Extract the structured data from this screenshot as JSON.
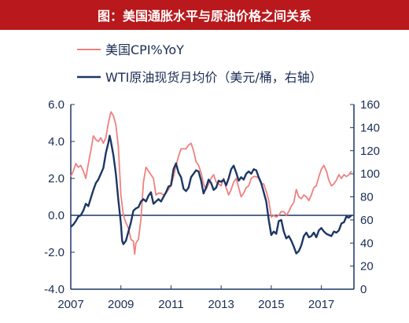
{
  "title": "图：美国通胀水平与原油价格之间关系",
  "chart_data": {
    "type": "line",
    "legend": "top-left",
    "grid": false,
    "x_ticks": [
      "2007",
      "2009",
      "2011",
      "2013",
      "2015",
      "2017"
    ],
    "x_range": [
      2007,
      2018.3
    ],
    "left_axis": {
      "ylim": [
        -4,
        6
      ],
      "ticks": [
        "6.0",
        "4.0",
        "2.0",
        "0.0",
        "-2.0",
        "-4.0"
      ]
    },
    "right_axis": {
      "ylim": [
        0,
        160
      ],
      "ticks": [
        "160",
        "140",
        "120",
        "100",
        "80",
        "60",
        "40",
        "20",
        "0"
      ]
    },
    "zero_line": 0,
    "series": [
      {
        "name": "美国CPI%YoY",
        "axis": "left",
        "color": "#f08080",
        "values": [
          [
            2007.0,
            2.1
          ],
          [
            2007.1,
            2.4
          ],
          [
            2007.2,
            2.8
          ],
          [
            2007.3,
            2.6
          ],
          [
            2007.4,
            2.7
          ],
          [
            2007.5,
            2.4
          ],
          [
            2007.6,
            2.0
          ],
          [
            2007.7,
            2.8
          ],
          [
            2007.8,
            3.5
          ],
          [
            2007.9,
            4.3
          ],
          [
            2008.0,
            4.1
          ],
          [
            2008.1,
            4.0
          ],
          [
            2008.2,
            4.2
          ],
          [
            2008.3,
            3.9
          ],
          [
            2008.4,
            4.2
          ],
          [
            2008.5,
            5.0
          ],
          [
            2008.6,
            5.6
          ],
          [
            2008.7,
            5.4
          ],
          [
            2008.8,
            4.9
          ],
          [
            2008.9,
            3.7
          ],
          [
            2009.0,
            1.1
          ],
          [
            2009.1,
            0.0
          ],
          [
            2009.2,
            -0.4
          ],
          [
            2009.3,
            -0.7
          ],
          [
            2009.4,
            -1.3
          ],
          [
            2009.5,
            -1.4
          ],
          [
            2009.55,
            -2.1
          ],
          [
            2009.6,
            -1.5
          ],
          [
            2009.7,
            -1.3
          ],
          [
            2009.8,
            -0.2
          ],
          [
            2009.9,
            1.8
          ],
          [
            2010.0,
            2.6
          ],
          [
            2010.1,
            2.4
          ],
          [
            2010.2,
            2.2
          ],
          [
            2010.3,
            2.0
          ],
          [
            2010.4,
            1.1
          ],
          [
            2010.5,
            1.2
          ],
          [
            2010.6,
            1.2
          ],
          [
            2010.7,
            1.1
          ],
          [
            2010.8,
            1.2
          ],
          [
            2010.9,
            1.4
          ],
          [
            2011.0,
            1.6
          ],
          [
            2011.1,
            2.1
          ],
          [
            2011.2,
            2.7
          ],
          [
            2011.3,
            3.2
          ],
          [
            2011.4,
            3.6
          ],
          [
            2011.5,
            3.6
          ],
          [
            2011.6,
            3.6
          ],
          [
            2011.7,
            3.8
          ],
          [
            2011.8,
            3.9
          ],
          [
            2011.9,
            3.5
          ],
          [
            2012.0,
            2.9
          ],
          [
            2012.1,
            2.7
          ],
          [
            2012.2,
            2.3
          ],
          [
            2012.3,
            1.7
          ],
          [
            2012.4,
            1.4
          ],
          [
            2012.5,
            1.7
          ],
          [
            2012.6,
            2.0
          ],
          [
            2012.7,
            2.2
          ],
          [
            2012.8,
            1.8
          ],
          [
            2012.9,
            1.7
          ],
          [
            2013.0,
            1.6
          ],
          [
            2013.1,
            2.0
          ],
          [
            2013.2,
            1.5
          ],
          [
            2013.3,
            1.1
          ],
          [
            2013.4,
            1.4
          ],
          [
            2013.5,
            1.8
          ],
          [
            2013.6,
            2.0
          ],
          [
            2013.7,
            1.5
          ],
          [
            2013.8,
            1.0
          ],
          [
            2013.9,
            1.2
          ],
          [
            2014.0,
            1.5
          ],
          [
            2014.1,
            1.6
          ],
          [
            2014.2,
            2.0
          ],
          [
            2014.3,
            2.1
          ],
          [
            2014.4,
            2.1
          ],
          [
            2014.5,
            2.0
          ],
          [
            2014.6,
            1.7
          ],
          [
            2014.7,
            1.7
          ],
          [
            2014.8,
            1.3
          ],
          [
            2014.9,
            0.8
          ],
          [
            2015.0,
            -0.1
          ],
          [
            2015.1,
            0.0
          ],
          [
            2015.2,
            -0.1
          ],
          [
            2015.3,
            0.0
          ],
          [
            2015.4,
            0.2
          ],
          [
            2015.5,
            0.2
          ],
          [
            2015.6,
            0.0
          ],
          [
            2015.7,
            0.2
          ],
          [
            2015.8,
            0.5
          ],
          [
            2015.9,
            0.7
          ],
          [
            2016.0,
            1.4
          ],
          [
            2016.1,
            1.0
          ],
          [
            2016.2,
            0.9
          ],
          [
            2016.3,
            1.1
          ],
          [
            2016.4,
            1.0
          ],
          [
            2016.5,
            0.8
          ],
          [
            2016.6,
            1.1
          ],
          [
            2016.7,
            1.5
          ],
          [
            2016.8,
            1.6
          ],
          [
            2016.9,
            2.1
          ],
          [
            2017.0,
            2.5
          ],
          [
            2017.1,
            2.7
          ],
          [
            2017.2,
            2.4
          ],
          [
            2017.3,
            1.9
          ],
          [
            2017.4,
            1.6
          ],
          [
            2017.5,
            1.7
          ],
          [
            2017.6,
            1.9
          ],
          [
            2017.7,
            2.2
          ],
          [
            2017.8,
            2.0
          ],
          [
            2017.9,
            2.2
          ],
          [
            2018.0,
            2.1
          ],
          [
            2018.1,
            2.2
          ],
          [
            2018.2,
            2.4
          ]
        ]
      },
      {
        "name": "WTI原油现货月均价（美元/桶，右轴）",
        "axis": "right",
        "color": "#1c3764",
        "values": [
          [
            2007.0,
            54
          ],
          [
            2007.1,
            56
          ],
          [
            2007.2,
            59
          ],
          [
            2007.3,
            63
          ],
          [
            2007.4,
            64
          ],
          [
            2007.5,
            68
          ],
          [
            2007.6,
            74
          ],
          [
            2007.7,
            72
          ],
          [
            2007.8,
            79
          ],
          [
            2007.9,
            86
          ],
          [
            2008.0,
            92
          ],
          [
            2008.1,
            95
          ],
          [
            2008.2,
            100
          ],
          [
            2008.3,
            105
          ],
          [
            2008.4,
            118
          ],
          [
            2008.5,
            127
          ],
          [
            2008.55,
            133
          ],
          [
            2008.6,
            128
          ],
          [
            2008.7,
            116
          ],
          [
            2008.8,
            100
          ],
          [
            2008.9,
            77
          ],
          [
            2009.0,
            57
          ],
          [
            2009.05,
            42
          ],
          [
            2009.1,
            39
          ],
          [
            2009.2,
            42
          ],
          [
            2009.3,
            50
          ],
          [
            2009.4,
            58
          ],
          [
            2009.5,
            68
          ],
          [
            2009.6,
            70
          ],
          [
            2009.7,
            71
          ],
          [
            2009.8,
            76
          ],
          [
            2009.9,
            78
          ],
          [
            2010.0,
            76
          ],
          [
            2010.1,
            81
          ],
          [
            2010.2,
            84
          ],
          [
            2010.3,
            74
          ],
          [
            2010.4,
            76
          ],
          [
            2010.5,
            78
          ],
          [
            2010.6,
            76
          ],
          [
            2010.7,
            80
          ],
          [
            2010.8,
            84
          ],
          [
            2010.9,
            89
          ],
          [
            2011.0,
            90
          ],
          [
            2011.1,
            104
          ],
          [
            2011.2,
            109
          ],
          [
            2011.3,
            101
          ],
          [
            2011.4,
            97
          ],
          [
            2011.5,
            87
          ],
          [
            2011.6,
            85
          ],
          [
            2011.7,
            88
          ],
          [
            2011.8,
            97
          ],
          [
            2011.9,
            100
          ],
          [
            2012.0,
            103
          ],
          [
            2012.1,
            102
          ],
          [
            2012.2,
            94
          ],
          [
            2012.3,
            83
          ],
          [
            2012.4,
            88
          ],
          [
            2012.5,
            95
          ],
          [
            2012.6,
            92
          ],
          [
            2012.7,
            86
          ],
          [
            2012.8,
            88
          ],
          [
            2012.9,
            94
          ],
          [
            2013.0,
            93
          ],
          [
            2013.1,
            95
          ],
          [
            2013.2,
            90
          ],
          [
            2013.3,
            96
          ],
          [
            2013.4,
            104
          ],
          [
            2013.5,
            107
          ],
          [
            2013.6,
            101
          ],
          [
            2013.7,
            94
          ],
          [
            2013.8,
            97
          ],
          [
            2013.9,
            95
          ],
          [
            2014.0,
            100
          ],
          [
            2014.1,
            102
          ],
          [
            2014.2,
            100
          ],
          [
            2014.3,
            104
          ],
          [
            2014.4,
            103
          ],
          [
            2014.5,
            97
          ],
          [
            2014.6,
            92
          ],
          [
            2014.7,
            84
          ],
          [
            2014.8,
            76
          ],
          [
            2014.9,
            60
          ],
          [
            2015.0,
            47
          ],
          [
            2015.1,
            50
          ],
          [
            2015.2,
            48
          ],
          [
            2015.3,
            59
          ],
          [
            2015.4,
            60
          ],
          [
            2015.5,
            50
          ],
          [
            2015.6,
            44
          ],
          [
            2015.7,
            46
          ],
          [
            2015.8,
            42
          ],
          [
            2015.9,
            37
          ],
          [
            2016.0,
            31
          ],
          [
            2016.1,
            33
          ],
          [
            2016.2,
            38
          ],
          [
            2016.3,
            46
          ],
          [
            2016.4,
            49
          ],
          [
            2016.5,
            45
          ],
          [
            2016.6,
            46
          ],
          [
            2016.7,
            49
          ],
          [
            2016.8,
            45
          ],
          [
            2016.9,
            51
          ],
          [
            2017.0,
            53
          ],
          [
            2017.1,
            50
          ],
          [
            2017.2,
            48
          ],
          [
            2017.3,
            47
          ],
          [
            2017.4,
            46
          ],
          [
            2017.5,
            50
          ],
          [
            2017.6,
            49
          ],
          [
            2017.7,
            51
          ],
          [
            2017.8,
            57
          ],
          [
            2017.9,
            58
          ],
          [
            2018.0,
            63
          ],
          [
            2018.1,
            62
          ],
          [
            2018.2,
            64
          ]
        ]
      }
    ]
  },
  "colors": {
    "title_bg": "#b9191c",
    "axis": "#1c3764"
  }
}
